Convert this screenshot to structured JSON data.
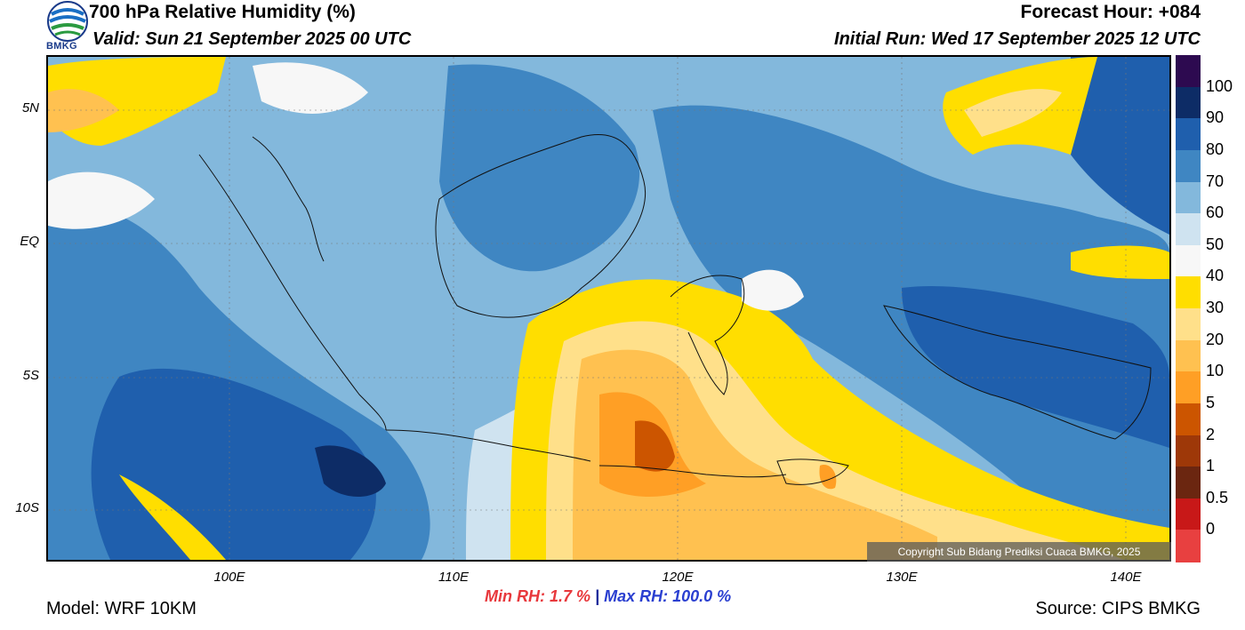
{
  "header": {
    "title": "700 hPa Relative Humidity (%)",
    "valid": "Valid: Sun 21 September 2025 00 UTC",
    "forecast_hour": "Forecast Hour: +084",
    "initial_run": "Initial Run: Wed 17 September 2025 12 UTC",
    "logo_text": "BMKG"
  },
  "map": {
    "lat_labels": [
      "5N",
      "EQ",
      "5S",
      "10S"
    ],
    "lon_labels": [
      "100E",
      "110E",
      "120E",
      "130E",
      "140E"
    ],
    "copyright": "Copyright Sub Bidang Prediksi Cuaca BMKG, 2025"
  },
  "colorbar": {
    "labels": [
      "100",
      "90",
      "80",
      "70",
      "60",
      "50",
      "40",
      "30",
      "20",
      "10",
      "5",
      "2",
      "1",
      "0.5",
      "0"
    ],
    "colors": [
      "#2d0a50",
      "#0d2c66",
      "#1f5fad",
      "#3f86c2",
      "#83b8dc",
      "#cfe3f0",
      "#f7f7f7",
      "#ffde00",
      "#ffe08a",
      "#ffc150",
      "#ff9f25",
      "#cc5500",
      "#9e3808",
      "#6b2610",
      "#c81818",
      "#e84040"
    ]
  },
  "stats": {
    "min_rh": "Min RH:   1.7 %",
    "separator": "|",
    "max_rh": "Max RH: 100.0 %"
  },
  "footer": {
    "model": "Model: WRF 10KM",
    "source": "Source: CIPS BMKG"
  }
}
